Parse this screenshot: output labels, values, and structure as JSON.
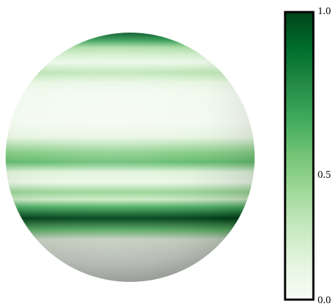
{
  "colorbar": {
    "tick_labels": [
      "1.0",
      "0.5",
      "0.0"
    ],
    "range": [
      0,
      1
    ],
    "colormap": "Greens",
    "stops": [
      "#f7fcf5",
      "#e5f5e0",
      "#c7e9c0",
      "#a1d99b",
      "#74c476",
      "#41ab5d",
      "#238b45",
      "#006d2c",
      "#00441b"
    ]
  },
  "sphere": {
    "shading": "smooth",
    "bands": [
      {
        "offset": 0.0,
        "value": 0.95
      },
      {
        "offset": 0.03,
        "value": 0.7
      },
      {
        "offset": 0.06,
        "value": 0.35
      },
      {
        "offset": 0.09,
        "value": 0.2
      },
      {
        "offset": 0.12,
        "value": 0.08
      },
      {
        "offset": 0.16,
        "value": 0.3
      },
      {
        "offset": 0.2,
        "value": 0.12
      },
      {
        "offset": 0.24,
        "value": 0.04
      },
      {
        "offset": 0.36,
        "value": 0.03
      },
      {
        "offset": 0.42,
        "value": 0.12
      },
      {
        "offset": 0.48,
        "value": 0.45
      },
      {
        "offset": 0.52,
        "value": 0.55
      },
      {
        "offset": 0.56,
        "value": 0.15
      },
      {
        "offset": 0.6,
        "value": 0.08
      },
      {
        "offset": 0.64,
        "value": 0.4
      },
      {
        "offset": 0.67,
        "value": 0.22
      },
      {
        "offset": 0.7,
        "value": 0.6
      },
      {
        "offset": 0.745,
        "value": 1.0
      },
      {
        "offset": 0.79,
        "value": 0.55
      },
      {
        "offset": 0.83,
        "value": 0.1
      },
      {
        "offset": 0.9,
        "value": 0.02
      },
      {
        "offset": 1.0,
        "value": 0.0
      }
    ]
  }
}
